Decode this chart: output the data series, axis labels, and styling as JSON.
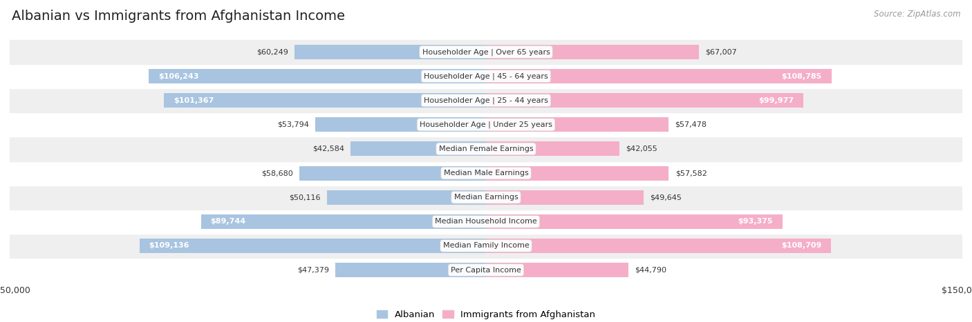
{
  "title": "Albanian vs Immigrants from Afghanistan Income",
  "source": "Source: ZipAtlas.com",
  "categories": [
    "Per Capita Income",
    "Median Family Income",
    "Median Household Income",
    "Median Earnings",
    "Median Male Earnings",
    "Median Female Earnings",
    "Householder Age | Under 25 years",
    "Householder Age | 25 - 44 years",
    "Householder Age | 45 - 64 years",
    "Householder Age | Over 65 years"
  ],
  "albanian_values": [
    47379,
    109136,
    89744,
    50116,
    58680,
    42584,
    53794,
    101367,
    106243,
    60249
  ],
  "immigrant_values": [
    44790,
    108709,
    93375,
    49645,
    57582,
    42055,
    57478,
    99977,
    108785,
    67007
  ],
  "max_value": 150000,
  "albanian_color": "#a8c4e0",
  "immigrant_color": "#f5aec8",
  "title_color": "#222222",
  "source_color": "#999999",
  "label_color_dark": "#333333",
  "label_color_light": "#ffffff",
  "background_color": "#ffffff",
  "row_bg_even": "#efefef",
  "row_bg_odd": "#ffffff",
  "bar_height": 0.6,
  "legend_albanian": "Albanian",
  "legend_immigrant": "Immigrants from Afghanistan",
  "inside_threshold": 75000
}
